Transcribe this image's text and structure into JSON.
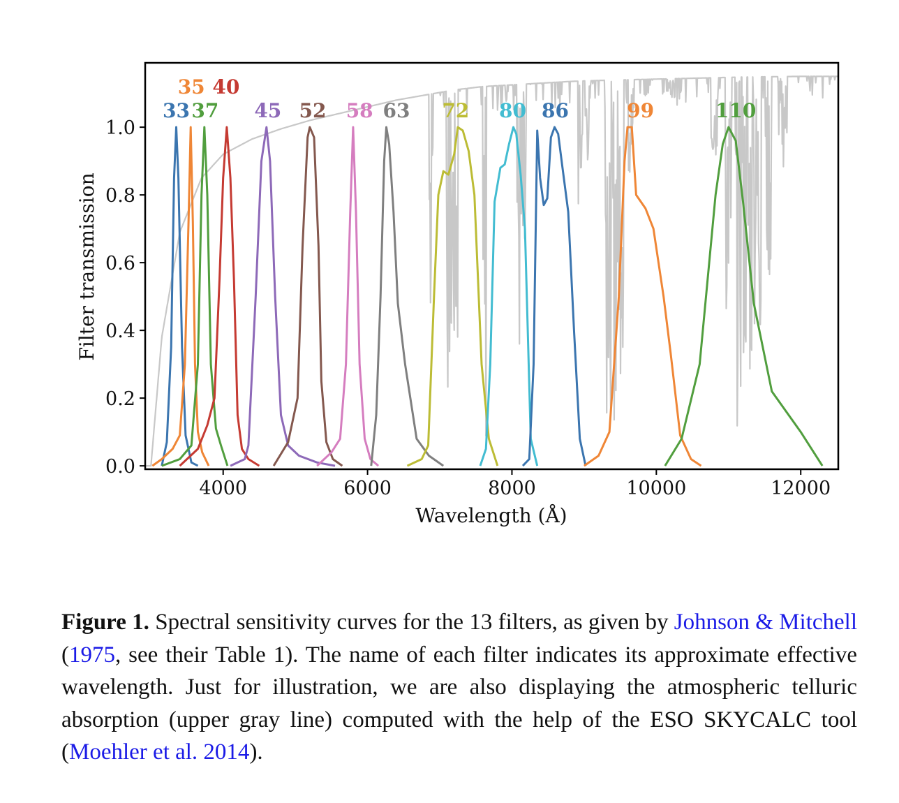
{
  "chart_data": {
    "type": "line",
    "title": "",
    "xlabel": "Wavelength",
    "xunit": "(Å)",
    "ylabel": "Filter transmission",
    "xlim": [
      2920,
      12520
    ],
    "ylim": [
      -0.01,
      1.19
    ],
    "xticks": [
      4000,
      6000,
      8000,
      10000,
      12000
    ],
    "yticks": [
      0.0,
      0.2,
      0.4,
      0.6,
      0.8,
      1.0
    ],
    "ytick_labels": [
      "0.0",
      "0.2",
      "0.4",
      "0.6",
      "0.8",
      "1.0"
    ],
    "grid": false,
    "series": [
      {
        "name": "33",
        "color": "#3b75af",
        "label_x": 3350,
        "label_row": 1,
        "x": [
          3150,
          3220,
          3280,
          3320,
          3350,
          3380,
          3430,
          3480,
          3560,
          3650
        ],
        "y": [
          0.0,
          0.07,
          0.35,
          0.85,
          1.0,
          0.85,
          0.35,
          0.09,
          0.01,
          0.0
        ]
      },
      {
        "name": "35",
        "color": "#ef8636",
        "label_x": 3560,
        "label_row": 0,
        "x": [
          3020,
          3150,
          3300,
          3400,
          3470,
          3520,
          3550,
          3580,
          3610,
          3650,
          3710,
          3800
        ],
        "y": [
          0.0,
          0.02,
          0.05,
          0.09,
          0.3,
          0.72,
          1.0,
          0.72,
          0.3,
          0.1,
          0.04,
          0.0
        ]
      },
      {
        "name": "37",
        "color": "#519e3e",
        "label_x": 3750,
        "label_row": 1,
        "x": [
          3150,
          3400,
          3560,
          3650,
          3700,
          3740,
          3780,
          3830,
          3900,
          3970,
          4060
        ],
        "y": [
          0.0,
          0.02,
          0.06,
          0.3,
          0.8,
          1.0,
          0.8,
          0.3,
          0.11,
          0.06,
          0.0
        ]
      },
      {
        "name": "40",
        "color": "#c53a32",
        "label_x": 4040,
        "label_row": 0,
        "x": [
          3400,
          3650,
          3780,
          3880,
          3950,
          4000,
          4050,
          4100,
          4150,
          4200,
          4260,
          4350,
          4500
        ],
        "y": [
          0.0,
          0.05,
          0.12,
          0.2,
          0.55,
          0.85,
          1.0,
          0.85,
          0.55,
          0.15,
          0.05,
          0.02,
          0.0
        ]
      },
      {
        "name": "45",
        "color": "#8d69b8",
        "label_x": 4620,
        "label_row": 1,
        "x": [
          4100,
          4300,
          4350,
          4450,
          4530,
          4600,
          4650,
          4720,
          4800,
          4900,
          5050,
          5300,
          5550
        ],
        "y": [
          0.0,
          0.02,
          0.06,
          0.5,
          0.9,
          1.0,
          0.9,
          0.5,
          0.15,
          0.06,
          0.03,
          0.01,
          0.0
        ]
      },
      {
        "name": "52",
        "color": "#84584e",
        "label_x": 5240,
        "label_row": 1,
        "x": [
          4700,
          4900,
          5030,
          5100,
          5170,
          5200,
          5260,
          5320,
          5360,
          5430,
          5520,
          5650
        ],
        "y": [
          0.0,
          0.07,
          0.2,
          0.65,
          0.97,
          1.0,
          0.97,
          0.65,
          0.25,
          0.07,
          0.02,
          0.0
        ]
      },
      {
        "name": "58",
        "color": "#d57dbf",
        "label_x": 5890,
        "label_row": 1,
        "x": [
          5300,
          5500,
          5620,
          5700,
          5760,
          5800,
          5840,
          5890,
          5960,
          6040,
          6150
        ],
        "y": [
          0.0,
          0.04,
          0.08,
          0.3,
          0.75,
          1.0,
          0.75,
          0.3,
          0.08,
          0.02,
          0.0
        ]
      },
      {
        "name": "63",
        "color": "#7f7f7f",
        "label_x": 6400,
        "label_row": 1,
        "x": [
          6050,
          6120,
          6180,
          6230,
          6260,
          6300,
          6360,
          6420,
          6520,
          6680,
          6850,
          7050
        ],
        "y": [
          0.0,
          0.15,
          0.5,
          0.9,
          1.0,
          0.95,
          0.75,
          0.48,
          0.3,
          0.08,
          0.03,
          0.0
        ]
      },
      {
        "name": "72",
        "color": "#bcbc35",
        "label_x": 7220,
        "label_row": 1,
        "x": [
          6550,
          6750,
          6840,
          6920,
          6980,
          7050,
          7120,
          7200,
          7250,
          7320,
          7400,
          7480,
          7580,
          7680,
          7800
        ],
        "y": [
          0.0,
          0.02,
          0.06,
          0.5,
          0.8,
          0.87,
          0.86,
          0.92,
          1.0,
          0.99,
          0.93,
          0.8,
          0.3,
          0.08,
          0.0
        ]
      },
      {
        "name": "80",
        "color": "#42bcd1",
        "label_x": 8010,
        "label_row": 1,
        "x": [
          7560,
          7640,
          7700,
          7760,
          7840,
          7900,
          7960,
          8020,
          8060,
          8120,
          8180,
          8260,
          8350
        ],
        "y": [
          0.0,
          0.05,
          0.3,
          0.78,
          0.88,
          0.89,
          0.95,
          1.0,
          0.98,
          0.86,
          0.7,
          0.08,
          0.0
        ]
      },
      {
        "name": "86",
        "color": "#3b75af",
        "label_x": 8600,
        "label_row": 1,
        "x": [
          8150,
          8240,
          8300,
          8350,
          8390,
          8440,
          8490,
          8540,
          8590,
          8640,
          8700,
          8780,
          8860,
          8940,
          9020
        ],
        "y": [
          0.0,
          0.02,
          0.3,
          0.99,
          0.85,
          0.77,
          0.79,
          0.97,
          1.0,
          0.98,
          0.88,
          0.75,
          0.4,
          0.08,
          0.0
        ]
      },
      {
        "name": "99",
        "color": "#ef8636",
        "label_x": 9780,
        "label_row": 1,
        "x": [
          9000,
          9200,
          9350,
          9480,
          9560,
          9600,
          9660,
          9720,
          9850,
          9960,
          10100,
          10200,
          10330,
          10480,
          10620
        ],
        "y": [
          0.0,
          0.03,
          0.1,
          0.5,
          0.9,
          1.0,
          1.0,
          0.8,
          0.76,
          0.7,
          0.5,
          0.33,
          0.09,
          0.02,
          0.0
        ]
      },
      {
        "name": "110",
        "color": "#519e3e",
        "label_x": 11100,
        "label_row": 1,
        "x": [
          10120,
          10350,
          10600,
          10820,
          10920,
          11000,
          11100,
          11200,
          11350,
          11600,
          12000,
          12300
        ],
        "y": [
          0.0,
          0.08,
          0.3,
          0.8,
          0.95,
          1.0,
          0.96,
          0.78,
          0.48,
          0.22,
          0.1,
          0.0
        ]
      }
    ],
    "telluric": {
      "name": "atmospheric telluric absorption",
      "color": "#c8c8c8",
      "x": [
        3000,
        3150,
        3400,
        3700,
        4000,
        4400,
        4800,
        5200,
        5600,
        6000,
        6400,
        6800,
        7200,
        7600,
        8000,
        8400,
        8800,
        9200,
        9600,
        10000,
        10400,
        10800,
        11200,
        11600,
        12000,
        12400,
        12520
      ],
      "y": [
        0.0,
        0.38,
        0.69,
        0.85,
        0.92,
        0.965,
        0.995,
        1.02,
        1.04,
        1.06,
        1.08,
        1.095,
        1.11,
        1.12,
        1.125,
        1.13,
        1.135,
        1.138,
        1.14,
        1.142,
        1.144,
        1.146,
        1.148,
        1.149,
        1.15,
        1.15,
        1.15
      ],
      "bands": [
        {
          "x": 6870,
          "w": 35,
          "depth": 0.28
        },
        {
          "x": 6900,
          "w": 12,
          "depth": 0.62
        },
        {
          "x": 7170,
          "w": 160,
          "depth": 0.1
        },
        {
          "x": 7620,
          "w": 45,
          "depth": 0.05
        },
        {
          "x": 7640,
          "w": 10,
          "depth": 0.0
        },
        {
          "x": 8130,
          "w": 130,
          "depth": 0.12
        },
        {
          "x": 8950,
          "w": 60,
          "depth": 0.58
        },
        {
          "x": 9050,
          "w": 80,
          "depth": 0.75
        },
        {
          "x": 9330,
          "w": 80,
          "depth": 0.12
        },
        {
          "x": 9400,
          "w": 120,
          "depth": 0.06
        },
        {
          "x": 9500,
          "w": 90,
          "depth": 0.2
        },
        {
          "x": 9650,
          "w": 80,
          "depth": 0.7
        },
        {
          "x": 10200,
          "w": 120,
          "depth": 0.95
        },
        {
          "x": 10800,
          "w": 80,
          "depth": 0.75
        },
        {
          "x": 11000,
          "w": 90,
          "depth": 0.3
        },
        {
          "x": 11130,
          "w": 80,
          "depth": 0.08
        },
        {
          "x": 11220,
          "w": 70,
          "depth": 0.12
        },
        {
          "x": 11300,
          "w": 70,
          "depth": 0.07
        },
        {
          "x": 11400,
          "w": 100,
          "depth": 0.18
        },
        {
          "x": 11550,
          "w": 90,
          "depth": 0.4
        },
        {
          "x": 11750,
          "w": 120,
          "depth": 0.75
        }
      ]
    }
  },
  "caption": {
    "label": "Figure 1.",
    "t1": " Spectral sensitivity curves for the 13 filters, as given by ",
    "ref1": "Johnson & Mitchell",
    "t2": " (",
    "ref1_year": "1975",
    "t3": ", see their Table 1). The name of each filter indicates its approximate effective wavelength. Just for illustration, we are also displaying the atmospheric telluric absorption (upper gray line) computed with the help of the ESO SKYCALC tool (",
    "ref2": "Moehler et al. 2014",
    "t4": ")."
  }
}
